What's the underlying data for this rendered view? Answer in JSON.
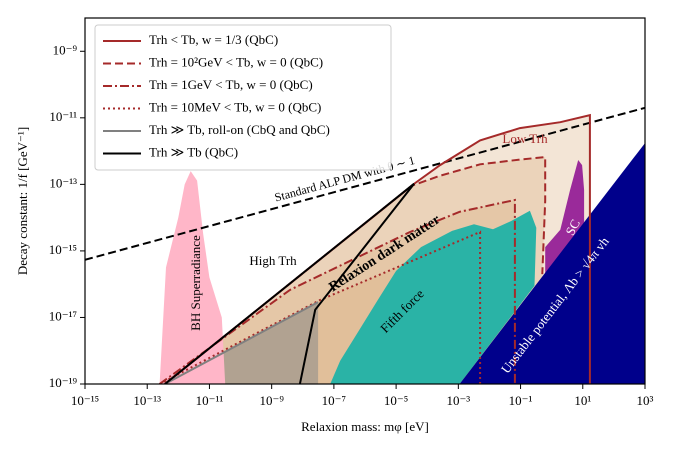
{
  "chart_data": {
    "type": "line",
    "xlabel": "Relaxion mass: mφ [eV]",
    "ylabel": "Decay constant: 1/f [GeV⁻¹]",
    "xscale": "log",
    "yscale": "log",
    "xlim": [
      1e-15,
      1000.0
    ],
    "ylim": [
      1e-19,
      1e-08
    ],
    "xticks": [
      {
        "value": 1e-15,
        "label": "10⁻¹⁵"
      },
      {
        "value": 1e-13,
        "label": "10⁻¹³"
      },
      {
        "value": 1e-11,
        "label": "10⁻¹¹"
      },
      {
        "value": 1e-09,
        "label": "10⁻⁹"
      },
      {
        "value": 1e-07,
        "label": "10⁻⁷"
      },
      {
        "value": 1e-05,
        "label": "10⁻⁵"
      },
      {
        "value": 0.001,
        "label": "10⁻³"
      },
      {
        "value": 0.1,
        "label": "10⁻¹"
      },
      {
        "value": 10,
        "label": "10¹"
      },
      {
        "value": 1000,
        "label": "10³"
      }
    ],
    "yticks": [
      {
        "value": 1e-19,
        "label": "10⁻¹⁹"
      },
      {
        "value": 1e-17,
        "label": "10⁻¹⁷"
      },
      {
        "value": 1e-15,
        "label": "10⁻¹⁵"
      },
      {
        "value": 1e-13,
        "label": "10⁻¹³"
      },
      {
        "value": 1e-11,
        "label": "10⁻¹¹"
      },
      {
        "value": 1e-09,
        "label": "10⁻⁹"
      }
    ],
    "legend": "upper left",
    "regions": [
      {
        "color": "#ffb6c8",
        "x": [
          2.5e-13,
          4e-13,
          1e-12,
          1.6e-12,
          2.5e-12,
          4e-12,
          6.3e-12,
          1e-11,
          2.5e-11,
          3.2e-11
        ],
        "y": [
          1e-19,
          3.2e-16,
          1e-14,
          1e-13,
          2.5e-13,
          1.3e-13,
          3.2e-15,
          1.6e-16,
          1e-17,
          1e-19
        ]
      },
      {
        "color": "#2ab3a6",
        "x": [
          7.6e-08,
          1.6e-07,
          6.3e-07,
          2.5e-06,
          1e-05,
          6.3e-05,
          0.00063,
          0.0032,
          0.013,
          0.05,
          0.2,
          0.32,
          0.28,
          0.0011
        ],
        "y": [
          1e-19,
          5e-19,
          4e-18,
          3.2e-17,
          2.5e-16,
          1.3e-15,
          4e-15,
          6.3e-15,
          4.5e-15,
          7.9e-15,
          1.6e-14,
          5e-15,
          9e-17,
          1e-19
        ]
      },
      {
        "color": "#9a2a9a",
        "x": [
          0.62,
          0.62,
          1.9,
          3.9,
          7.1,
          9.5,
          11,
          11
        ],
        "y": [
          2.1e-16,
          1.3e-15,
          4.3e-15,
          6.8e-14,
          5.4e-13,
          3.8e-13,
          6.8e-14,
          7.1e-15
        ]
      },
      {
        "color": "#00008b",
        "x": [
          0.0011,
          1000,
          1000
        ],
        "y": [
          1e-19,
          1.74e-12,
          1e-19
        ]
      }
    ],
    "reference": {
      "color": "#000000",
      "linestyle": "dashed",
      "x": [
        1e-15,
        1000
      ],
      "y": [
        5.4e-16,
        2e-11
      ]
    },
    "series": [
      {
        "name": "Trh < Tb, w = 1/3 (QbC)",
        "color": "#a52a2a",
        "linestyle": "solid",
        "fill": "#d9ae80",
        "x": [
          3.7e-13,
          4.1e-05,
          0.00026,
          0.005,
          0.095,
          1.9,
          17,
          17
        ],
        "y": [
          1e-19,
          1.1e-13,
          3.8e-13,
          2.1e-12,
          4.9e-12,
          7.4e-12,
          1.2e-11,
          1e-19
        ]
      },
      {
        "name": "Trh = 10²GeV < Tb, w = 0 (QbC)",
        "color": "#a52a2a",
        "linestyle": "dashed",
        "fill": "#d9ae80",
        "x": [
          3.7e-13,
          3.2e-05,
          0.00025,
          0.005,
          0.1,
          0.62,
          0.62,
          0.5
        ],
        "y": [
          1e-19,
          9.1e-14,
          1.8e-13,
          4e-13,
          5.6e-13,
          6.6e-13,
          3.2e-14,
          2e-16
        ]
      },
      {
        "name": "Trh = 1GeV < Tb, w = 0 (QbC)",
        "color": "#a52a2a",
        "linestyle": "dashdot",
        "fill": "#d9ae80",
        "x": [
          2.5e-13,
          3.9e-09,
          2.8e-05,
          0.0011,
          0.066,
          0.066
        ],
        "y": [
          1e-19,
          6.8e-17,
          3.7e-15,
          1.5e-14,
          3.4e-14,
          1e-19
        ]
      },
      {
        "name": "Trh = 10MeV < Tb, w = 0 (QbC)",
        "color": "#a52a2a",
        "linestyle": "dotted",
        "fill": "#d9ae80",
        "x": [
          2.5e-13,
          3.5e-08,
          0.005,
          0.005
        ],
        "y": [
          1e-19,
          3.3e-17,
          3.7e-15,
          1e-19
        ]
      },
      {
        "name": "Trh ≫ Tb, roll-on (CbQ and QbC)",
        "color": "#808080",
        "linestyle": "solid",
        "fill": "#8a8a8a",
        "x": [
          3.7e-13,
          3.1e-08
        ],
        "y": [
          1e-19,
          2.9e-17
        ]
      },
      {
        "name": "Trh ≫ Tb (QbC)",
        "color": "#000000",
        "linestyle": "solid",
        "x": [
          3.7e-13,
          3.8e-05,
          2.5e-08,
          8.1e-09
        ],
        "y": [
          1e-19,
          1.05e-13,
          1.7e-17,
          1e-19
        ]
      }
    ],
    "annotations": [
      "Standard ALP DM with θ ∼ 1",
      "Low Trh",
      "High Trh",
      "BH Superradiance",
      "Relaxion dark matter",
      "Fifth force",
      "SC",
      "Unstable potential, Λb > √4π vh"
    ]
  }
}
